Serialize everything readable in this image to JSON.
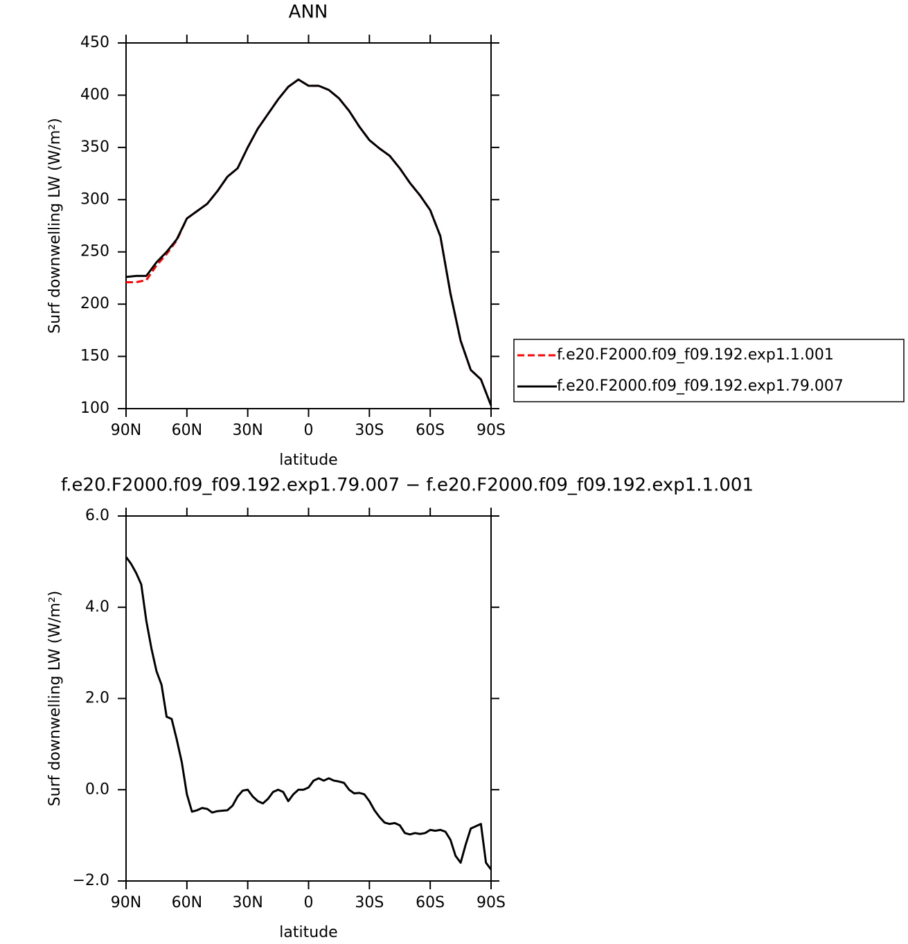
{
  "chart_data": [
    {
      "type": "line",
      "title": "ANN",
      "xlabel": "latitude",
      "ylabel": "Surf downwelling LW (W/m²)",
      "x": [
        90,
        85,
        80,
        75,
        70,
        65,
        60,
        55,
        50,
        45,
        40,
        35,
        30,
        25,
        20,
        15,
        10,
        5,
        0,
        -5,
        -10,
        -15,
        -20,
        -25,
        -30,
        -35,
        -40,
        -45,
        -50,
        -55,
        -60,
        -65,
        -70,
        -75,
        -80,
        -85,
        -90
      ],
      "series": [
        {
          "name": "f.e20.F2000.f09_f09.192.exp1.1.001",
          "color": "#ff0000",
          "line_style": "dashed",
          "values": [
            221,
            221,
            223,
            237,
            248,
            261,
            282,
            289,
            296,
            308,
            322,
            330,
            350,
            368,
            382,
            396,
            408,
            415,
            409,
            409,
            405,
            397,
            385,
            370,
            357,
            349,
            342,
            330,
            316,
            304,
            290,
            265,
            210,
            165,
            137,
            128,
            103
          ]
        },
        {
          "name": "f.e20.F2000.f09_f09.192.exp1.79.007",
          "color": "#000000",
          "line_style": "solid",
          "values": [
            226,
            227,
            227,
            240,
            250,
            262,
            282,
            289,
            296,
            308,
            322,
            330,
            350,
            368,
            382,
            396,
            408,
            415,
            409,
            409,
            405,
            397,
            385,
            370,
            357,
            349,
            342,
            330,
            316,
            304,
            290,
            265,
            210,
            165,
            137,
            128,
            103
          ]
        }
      ],
      "xlim": [
        90,
        -90
      ],
      "xticks": [
        {
          "value": 90,
          "label": "90N"
        },
        {
          "value": 60,
          "label": "60N"
        },
        {
          "value": 30,
          "label": "30N"
        },
        0,
        {
          "value": -30,
          "label": "30S"
        },
        {
          "value": -60,
          "label": "60S"
        },
        {
          "value": -90,
          "label": "90S"
        }
      ],
      "ylim": [
        100,
        450
      ],
      "yticks": [
        100,
        150,
        200,
        250,
        300,
        350,
        400,
        450
      ],
      "legend": "right"
    },
    {
      "type": "line",
      "title": "f.e20.F2000.f09_f09.192.exp1.79.007 − f.e20.F2000.f09_f09.192.exp1.1.001",
      "xlabel": "latitude",
      "ylabel": "Surf downwelling LW (W/m²)",
      "x": [
        90,
        87.5,
        85,
        82.5,
        80,
        77.5,
        75,
        72.5,
        70,
        67.5,
        65,
        62.5,
        60,
        57.5,
        55,
        52.5,
        50,
        47.5,
        45,
        42.5,
        40,
        37.5,
        35,
        32.5,
        30,
        27.5,
        25,
        22.5,
        20,
        17.5,
        15,
        12.5,
        10,
        7.5,
        5,
        2.5,
        0,
        -2.5,
        -5,
        -7.5,
        -10,
        -12.5,
        -15,
        -17.5,
        -20,
        -22.5,
        -25,
        -27.5,
        -30,
        -32.5,
        -35,
        -37.5,
        -40,
        -42.5,
        -45,
        -47.5,
        -50,
        -52.5,
        -55,
        -57.5,
        -60,
        -62.5,
        -65,
        -67.5,
        -70,
        -72.5,
        -75,
        -77.5,
        -80,
        -82.5,
        -85,
        -87.5,
        -90
      ],
      "series": [
        {
          "color": "#000000",
          "line_style": "solid",
          "values": [
            5.1,
            4.95,
            4.75,
            4.5,
            3.7,
            3.1,
            2.6,
            2.3,
            1.6,
            1.55,
            1.1,
            0.6,
            -0.1,
            -0.48,
            -0.45,
            -0.4,
            -0.42,
            -0.5,
            -0.47,
            -0.46,
            -0.45,
            -0.35,
            -0.15,
            -0.02,
            0.0,
            -0.15,
            -0.25,
            -0.3,
            -0.2,
            -0.05,
            0.0,
            -0.05,
            -0.25,
            -0.1,
            0.0,
            0.0,
            0.05,
            0.2,
            0.25,
            0.2,
            0.25,
            0.2,
            0.18,
            0.15,
            0.0,
            -0.08,
            -0.07,
            -0.1,
            -0.25,
            -0.45,
            -0.6,
            -0.72,
            -0.75,
            -0.73,
            -0.78,
            -0.95,
            -0.98,
            -0.95,
            -0.97,
            -0.95,
            -0.88,
            -0.9,
            -0.88,
            -0.92,
            -1.1,
            -1.45,
            -1.6,
            -1.2,
            -0.85,
            -0.8,
            -0.75,
            -1.6,
            -1.75
          ]
        }
      ],
      "xlim": [
        90,
        -90
      ],
      "xticks": [
        {
          "value": 90,
          "label": "90N"
        },
        {
          "value": 60,
          "label": "60N"
        },
        {
          "value": 30,
          "label": "30N"
        },
        0,
        {
          "value": -30,
          "label": "30S"
        },
        {
          "value": -60,
          "label": "60S"
        },
        {
          "value": -90,
          "label": "90S"
        }
      ],
      "ylim": [
        -2,
        6
      ],
      "yticks": [
        {
          "value": -2,
          "label": "−2.0"
        },
        {
          "value": 0,
          "label": "0.0"
        },
        {
          "value": 2,
          "label": "2.0"
        },
        {
          "value": 4,
          "label": "4.0"
        },
        {
          "value": 6,
          "label": "6.0"
        }
      ]
    }
  ]
}
